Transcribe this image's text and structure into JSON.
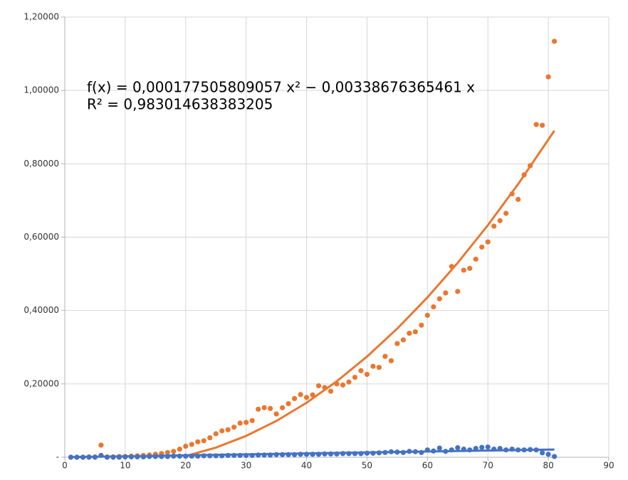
{
  "chart_data": {
    "type": "scatter",
    "annotation": [
      "f(x) = 0,000177505809057 x² − 0,00338676365461 x",
      "R² = 0,983014638383205"
    ],
    "x": [
      1,
      2,
      3,
      4,
      5,
      6,
      7,
      8,
      9,
      10,
      11,
      12,
      13,
      14,
      15,
      16,
      17,
      18,
      19,
      20,
      21,
      22,
      23,
      24,
      25,
      26,
      27,
      28,
      29,
      30,
      31,
      32,
      33,
      34,
      35,
      36,
      37,
      38,
      39,
      40,
      41,
      42,
      43,
      44,
      45,
      46,
      47,
      48,
      49,
      50,
      51,
      52,
      53,
      54,
      55,
      56,
      57,
      58,
      59,
      60,
      61,
      62,
      63,
      64,
      65,
      66,
      67,
      68,
      69,
      70,
      71,
      72,
      73,
      74,
      75,
      76,
      77,
      78,
      79,
      80,
      81
    ],
    "series": [
      {
        "color": "#e9772f",
        "values": [
          0,
          0,
          0,
          0.001,
          0.001,
          0.033,
          0.001,
          0.001,
          0.002,
          0.002,
          0.003,
          0.004,
          0.005,
          0.006,
          0.008,
          0.01,
          0.013,
          0.016,
          0.022,
          0.03,
          0.035,
          0.042,
          0.045,
          0.053,
          0.064,
          0.072,
          0.075,
          0.082,
          0.093,
          0.095,
          0.1,
          0.131,
          0.135,
          0.133,
          0.118,
          0.135,
          0.146,
          0.16,
          0.171,
          0.163,
          0.17,
          0.195,
          0.19,
          0.18,
          0.2,
          0.197,
          0.205,
          0.218,
          0.236,
          0.226,
          0.248,
          0.245,
          0.275,
          0.263,
          0.31,
          0.32,
          0.338,
          0.342,
          0.36,
          0.387,
          0.41,
          0.432,
          0.448,
          0.52,
          0.452,
          0.51,
          0.515,
          0.54,
          0.573,
          0.587,
          0.63,
          0.645,
          0.665,
          0.718,
          0.703,
          0.77,
          0.795,
          0.907,
          0.905,
          1.037,
          1.134
        ]
      },
      {
        "color": "#4472c4",
        "values": [
          0,
          0,
          0,
          0,
          0,
          0.005,
          0,
          0,
          0,
          0.001,
          0.001,
          0.001,
          0.001,
          0.002,
          0.002,
          0.002,
          0.002,
          0.003,
          0.003,
          0.003,
          0.003,
          0.003,
          0.004,
          0.004,
          0.004,
          0.004,
          0.005,
          0.005,
          0.005,
          0.005,
          0.005,
          0.006,
          0.006,
          0.006,
          0.007,
          0.007,
          0.007,
          0.007,
          0.008,
          0.008,
          0.008,
          0.008,
          0.009,
          0.009,
          0.009,
          0.01,
          0.01,
          0.01,
          0.01,
          0.011,
          0.011,
          0.012,
          0.013,
          0.015,
          0.014,
          0.013,
          0.016,
          0.015,
          0.013,
          0.02,
          0.017,
          0.025,
          0.016,
          0.02,
          0.026,
          0.022,
          0.02,
          0.024,
          0.027,
          0.028,
          0.022,
          0.024,
          0.02,
          0.022,
          0.02,
          0.02,
          0.021,
          0.02,
          0.012,
          0.008,
          0.002
        ]
      }
    ],
    "trendlines": [
      {
        "color": "#e9772f",
        "x": [
          20,
          25,
          30,
          35,
          40,
          45,
          50,
          55,
          60,
          65,
          70,
          75,
          81
        ],
        "values": [
          0.00327,
          0.02627,
          0.05815,
          0.09891,
          0.14854,
          0.20705,
          0.27443,
          0.35068,
          0.43582,
          0.52982,
          0.6327,
          0.74446,
          0.89029
        ]
      },
      {
        "color": "#4472c4",
        "x": [
          1,
          81
        ],
        "values": [
          0.0005,
          0.021
        ]
      }
    ],
    "xlim": [
      0,
      90
    ],
    "xticks": [
      0,
      10,
      20,
      30,
      40,
      50,
      60,
      70,
      80,
      90
    ],
    "ylim": [
      0,
      1.2
    ],
    "yticks": [
      {
        "value": 0,
        "label": "-"
      },
      {
        "value": 0.2,
        "label": "0,20000"
      },
      {
        "value": 0.4,
        "label": "0,40000"
      },
      {
        "value": 0.6,
        "label": "0,60000"
      },
      {
        "value": 0.8,
        "label": "0,80000"
      },
      {
        "value": 1.0,
        "label": "1,00000"
      },
      {
        "value": 1.2,
        "label": "1,20000"
      }
    ],
    "grid": true
  }
}
